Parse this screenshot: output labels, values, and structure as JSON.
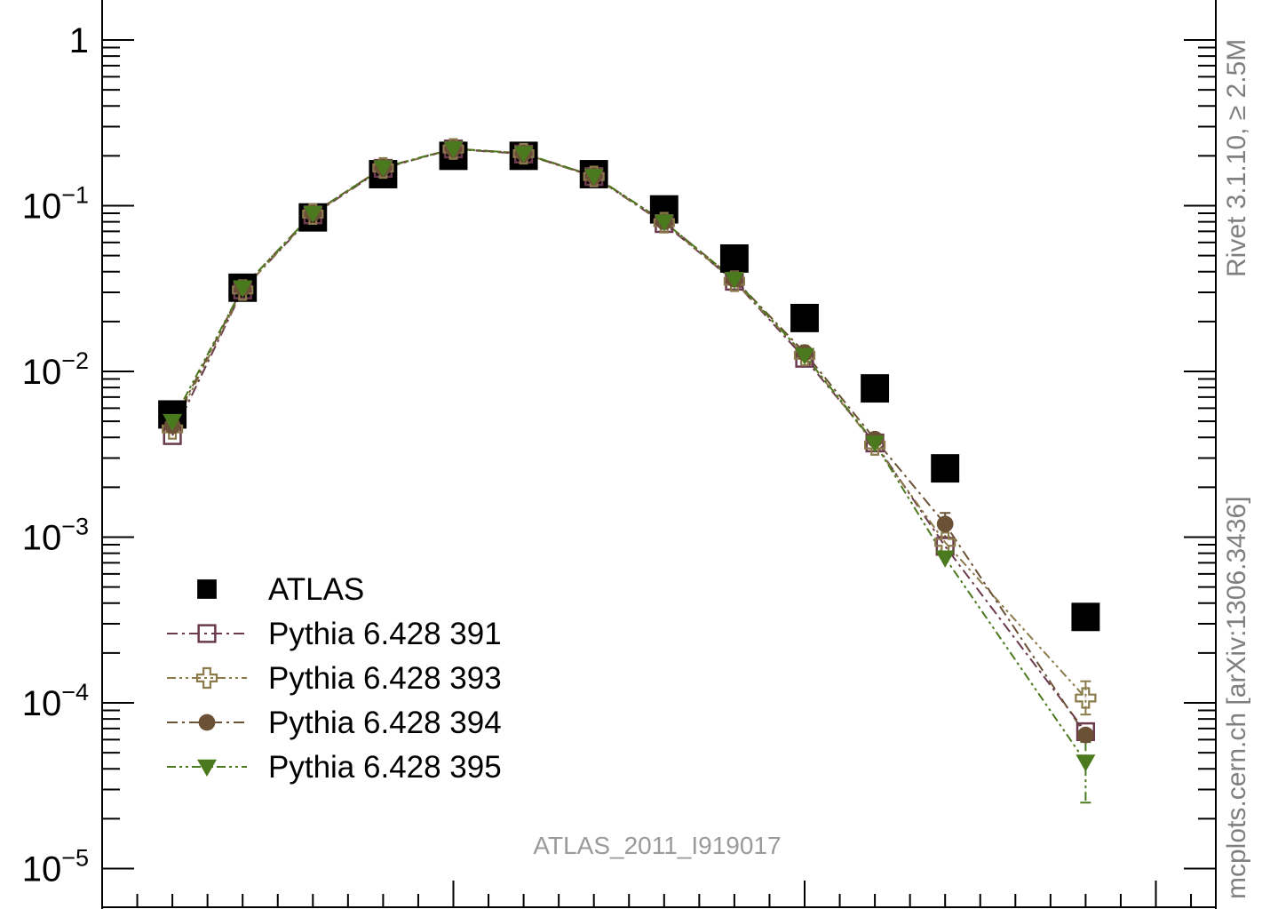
{
  "chart_data": {
    "type": "scatter",
    "yscale": "log",
    "ylim": [
      1e-05,
      1.8
    ],
    "xlim": [
      0,
      15.5
    ],
    "y_ticks": [
      {
        "value": 1,
        "base": "1",
        "exp": ""
      },
      {
        "value": 0.1,
        "base": "10",
        "exp": "−1"
      },
      {
        "value": 0.01,
        "base": "10",
        "exp": "−2"
      },
      {
        "value": 0.001,
        "base": "10",
        "exp": "−3"
      },
      {
        "value": 0.0001,
        "base": "10",
        "exp": "−4"
      },
      {
        "value": 1e-05,
        "base": "10",
        "exp": "−5"
      }
    ],
    "x": [
      1,
      2,
      3,
      4,
      5,
      6,
      7,
      8,
      9,
      10,
      11,
      12,
      14
    ],
    "series": [
      {
        "name": "ATLAS",
        "marker": "square-filled",
        "color": "#000000",
        "line": "none",
        "values": [
          0.0055,
          0.032,
          0.085,
          0.155,
          0.2,
          0.2,
          0.155,
          0.095,
          0.048,
          0.021,
          0.0079,
          0.0026,
          0.00033
        ]
      },
      {
        "name": "Pythia 6.428 391",
        "marker": "square-open",
        "color": "#6b3a4e",
        "line": "dash-dot",
        "values": [
          0.0041,
          0.031,
          0.088,
          0.168,
          0.22,
          0.205,
          0.15,
          0.078,
          0.035,
          0.012,
          0.0037,
          0.00088,
          6.7e-05
        ]
      },
      {
        "name": "Pythia 6.428 393",
        "marker": "cross-open",
        "color": "#8b7a4a",
        "line": "dash-dot-dot",
        "values": [
          0.0045,
          0.031,
          0.089,
          0.169,
          0.22,
          0.206,
          0.15,
          0.079,
          0.035,
          0.0125,
          0.0036,
          0.00093,
          0.000107
        ]
      },
      {
        "name": "Pythia 6.428 394",
        "marker": "circle-filled",
        "color": "#6b5236",
        "line": "dash-dot",
        "values": [
          0.0047,
          0.032,
          0.09,
          0.17,
          0.221,
          0.207,
          0.151,
          0.08,
          0.036,
          0.013,
          0.0039,
          0.0012,
          6.4e-05
        ]
      },
      {
        "name": "Pythia 6.428 395",
        "marker": "triangle-down-filled",
        "color": "#4b7a1e",
        "line": "dash-dot-dot",
        "values": [
          0.005,
          0.032,
          0.09,
          0.17,
          0.221,
          0.207,
          0.151,
          0.08,
          0.036,
          0.0125,
          0.0037,
          0.00075,
          4.4e-05
        ]
      }
    ],
    "error_bars": {
      "Pythia 6.428 393": {
        "index": 12,
        "low": 8.5e-05,
        "high": 0.000135
      },
      "Pythia 6.428 394": {
        "index": 11,
        "low": 0.001,
        "high": 0.0014
      },
      "Pythia 6.428 395": {
        "index": 12,
        "low": 2.5e-05,
        "high": 5.8e-05
      }
    },
    "legend_placement": "bottom-left",
    "annotation": "ATLAS_2011_I919017",
    "side_labels": [
      "Rivet 3.1.10, ≥ 2.5M",
      "mcplots.cern.ch [arXiv:1306.3436]"
    ]
  }
}
